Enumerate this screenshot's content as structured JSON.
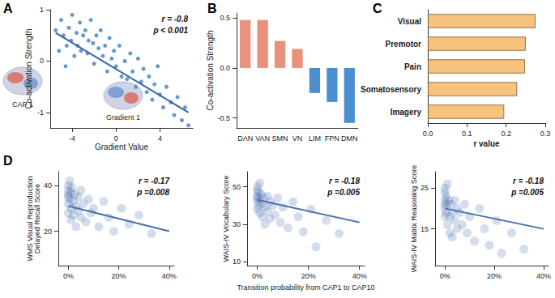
{
  "chart_data": [
    {
      "type": "scatter",
      "panel": "A",
      "xlabel": "Gradient Value",
      "ylabel": "Co-activation Strength",
      "xlim": [
        -6,
        7
      ],
      "xticks": [
        -4,
        0,
        4
      ],
      "ylim": [
        -1.3,
        1
      ],
      "yticks": [
        -1,
        0,
        1
      ],
      "grid": false,
      "annotations": [
        "r = -0.8",
        "p < 0.001"
      ],
      "image_labels": [
        "CAP 1",
        "Gradient 1"
      ],
      "series": [
        {
          "type": "scatter",
          "color": "#4a86c5",
          "marker": "circle",
          "values": [
            [
              -5.5,
              0.6
            ],
            [
              -5.2,
              0.2
            ],
            [
              -5,
              0.8
            ],
            [
              -4.8,
              0.5
            ],
            [
              -4.6,
              -0.1
            ],
            [
              -4.5,
              0.3
            ],
            [
              -4.3,
              0.65
            ],
            [
              -4.1,
              0.4
            ],
            [
              -4,
              0.9
            ],
            [
              -3.8,
              0.1
            ],
            [
              -3.6,
              0.55
            ],
            [
              -3.5,
              0.3
            ],
            [
              -3.3,
              0.75
            ],
            [
              -3.2,
              0.2
            ],
            [
              -3,
              0.5
            ],
            [
              -2.8,
              0.6
            ],
            [
              -2.6,
              0.15
            ],
            [
              -2.5,
              0.4
            ],
            [
              -2.3,
              0.8
            ],
            [
              -2.1,
              0.35
            ],
            [
              -2,
              -0.05
            ],
            [
              -1.8,
              0.5
            ],
            [
              -1.6,
              0.25
            ],
            [
              -1.4,
              0.6
            ],
            [
              -1.2,
              0.1
            ],
            [
              -1,
              0.3
            ],
            [
              -0.8,
              -0.2
            ],
            [
              -0.6,
              0.45
            ],
            [
              -0.4,
              0.05
            ],
            [
              -0.2,
              0.2
            ],
            [
              0,
              -0.1
            ],
            [
              0.3,
              0.3
            ],
            [
              0.5,
              -0.3
            ],
            [
              0.8,
              0
            ],
            [
              1,
              -0.35
            ],
            [
              1.3,
              0.15
            ],
            [
              1.5,
              -0.2
            ],
            [
              1.8,
              -0.5
            ],
            [
              2,
              0.05
            ],
            [
              2.3,
              -0.4
            ],
            [
              2.5,
              -0.15
            ],
            [
              2.8,
              -0.6
            ],
            [
              3,
              -0.3
            ],
            [
              3.3,
              -0.75
            ],
            [
              3.5,
              -0.45
            ],
            [
              3.8,
              -0.1
            ],
            [
              4,
              -0.65
            ],
            [
              4.3,
              -0.9
            ],
            [
              4.6,
              -0.5
            ],
            [
              5,
              -0.8
            ],
            [
              5.3,
              -1.05
            ],
            [
              5.6,
              -0.7
            ],
            [
              6,
              -1.15
            ],
            [
              6.3,
              -0.9
            ],
            [
              6.6,
              -1.25
            ]
          ]
        },
        {
          "type": "line",
          "color": "#3868a6",
          "line_style": "solid",
          "values": [
            [
              -5.5,
              0.55
            ],
            [
              6.6,
              -1
            ]
          ]
        }
      ]
    },
    {
      "type": "bar",
      "panel": "B",
      "ylabel": "Co-activation Strength",
      "categories": [
        "DAN",
        "VAN",
        "SMN",
        "VN",
        "LIM",
        "FPN",
        "DMN"
      ],
      "values": [
        0.48,
        0.48,
        0.27,
        0.19,
        -0.25,
        -0.34,
        -0.55
      ],
      "colors": [
        "#e8927c",
        "#e8927c",
        "#e8927c",
        "#e8927c",
        "#4b8fd1",
        "#4b8fd1",
        "#4b8fd1"
      ],
      "ylim": [
        -0.6,
        0.55
      ],
      "yticks": [
        -0.5,
        {
          "value": 0,
          "label": "0.0"
        },
        0.5
      ],
      "grid": false
    },
    {
      "type": "bar",
      "panel": "C",
      "orientation": "horizontal",
      "xlabel": "r value",
      "categories": [
        "Visual",
        "Premotor",
        "Pain",
        "Somatosensory",
        "Imagery"
      ],
      "values": [
        0.275,
        0.25,
        0.248,
        0.228,
        0.195
      ],
      "color": "#f7c27e",
      "xlim": [
        0,
        0.3
      ],
      "xticks": [
        {
          "value": 0,
          "label": "0.0"
        },
        0.1,
        0.2,
        0.3
      ],
      "grid": false
    },
    {
      "type": "scatter",
      "panel": "D",
      "ylabel": "WMS Visual Reproduction\nDelayed Recall Score",
      "xlim": [
        -4,
        42
      ],
      "xticks": [
        {
          "value": 0,
          "label": "0%"
        },
        {
          "value": 20,
          "label": "20%"
        },
        {
          "value": 40,
          "label": "40%"
        }
      ],
      "ylim": [
        5,
        46
      ],
      "yticks": [
        20,
        40
      ],
      "grid": false,
      "annotations": [
        "r = -0.17",
        "p =0.008"
      ],
      "series": [
        {
          "type": "scatter",
          "color": "#3b63a8",
          "marker": "circle",
          "values": [
            [
              0,
              38
            ],
            [
              0,
              35
            ],
            [
              0,
              40
            ],
            [
              0,
              32
            ],
            [
              0,
              28
            ],
            [
              0,
              36
            ],
            [
              0.5,
              34
            ],
            [
              0.5,
              42
            ],
            [
              1,
              37
            ],
            [
              1,
              30
            ],
            [
              1,
              25
            ],
            [
              1.5,
              39
            ],
            [
              2,
              33
            ],
            [
              2,
              27
            ],
            [
              2.5,
              36
            ],
            [
              3,
              31
            ],
            [
              3,
              22
            ],
            [
              4,
              35
            ],
            [
              4,
              29
            ],
            [
              5,
              38
            ],
            [
              5,
              26
            ],
            [
              6,
              32
            ],
            [
              7,
              24
            ],
            [
              8,
              34
            ],
            [
              9,
              28
            ],
            [
              10,
              30
            ],
            [
              12,
              22
            ],
            [
              14,
              33
            ],
            [
              16,
              26
            ],
            [
              18,
              20
            ],
            [
              21,
              30
            ],
            [
              24,
              23
            ],
            [
              28,
              27
            ],
            [
              33,
              19
            ]
          ]
        },
        {
          "type": "line",
          "color": "#4a6fb0",
          "line_style": "solid",
          "values": [
            [
              0,
              31
            ],
            [
              40,
              20
            ]
          ]
        }
      ]
    },
    {
      "type": "scatter",
      "xlabel": "Transition probability from CAP1 to CAP10",
      "ylabel": "WAIS-IV Vocabulary Score",
      "xlim": [
        -4,
        42
      ],
      "xticks": [
        {
          "value": 0,
          "label": "0%"
        },
        {
          "value": 20,
          "label": "20%"
        },
        {
          "value": 40,
          "label": "40%"
        }
      ],
      "ylim": [
        8,
        58
      ],
      "yticks": [
        10,
        30,
        50
      ],
      "grid": false,
      "annotations": [
        "r = -0.18",
        "p =0.005"
      ],
      "series": [
        {
          "type": "scatter",
          "color": "#3b63a8",
          "marker": "circle",
          "values": [
            [
              0,
              45
            ],
            [
              0,
              42
            ],
            [
              0,
              48
            ],
            [
              0,
              38
            ],
            [
              0,
              50
            ],
            [
              0,
              44
            ],
            [
              0.5,
              40
            ],
            [
              0.5,
              47
            ],
            [
              1,
              43
            ],
            [
              1,
              36
            ],
            [
              1,
              52
            ],
            [
              1.5,
              46
            ],
            [
              2,
              41
            ],
            [
              2,
              34
            ],
            [
              2.5,
              44
            ],
            [
              3,
              39
            ],
            [
              3,
              30
            ],
            [
              4,
              45
            ],
            [
              4,
              37
            ],
            [
              5,
              42
            ],
            [
              5,
              33
            ],
            [
              6,
              40
            ],
            [
              7,
              35
            ],
            [
              8,
              44
            ],
            [
              9,
              31
            ],
            [
              10,
              39
            ],
            [
              12,
              28
            ],
            [
              14,
              42
            ],
            [
              16,
              34
            ],
            [
              18,
              26
            ],
            [
              21,
              38
            ],
            [
              23,
              18
            ],
            [
              27,
              32
            ],
            [
              32,
              25
            ]
          ]
        },
        {
          "type": "line",
          "color": "#4a6fb0",
          "line_style": "solid",
          "values": [
            [
              0,
              43
            ],
            [
              40,
              31
            ]
          ]
        }
      ]
    },
    {
      "type": "scatter",
      "ylabel": "WAIS-IV Matrix Reasoning Score",
      "xlim": [
        -4,
        42
      ],
      "xticks": [
        {
          "value": 0,
          "label": "0%"
        },
        {
          "value": 20,
          "label": "20%"
        },
        {
          "value": 40,
          "label": "40%"
        }
      ],
      "ylim": [
        6,
        29
      ],
      "yticks": [
        15,
        25
      ],
      "grid": false,
      "annotations": [
        "r = -0.18",
        "p =0.005"
      ],
      "series": [
        {
          "type": "scatter",
          "color": "#3b63a8",
          "marker": "circle",
          "values": [
            [
              0,
              22
            ],
            [
              0,
              20
            ],
            [
              0,
              24
            ],
            [
              0,
              18
            ],
            [
              0,
              25
            ],
            [
              0,
              21
            ],
            [
              0.5,
              19
            ],
            [
              0.5,
              23
            ],
            [
              1,
              21
            ],
            [
              1,
              16
            ],
            [
              1,
              26
            ],
            [
              1.5,
              22
            ],
            [
              2,
              18
            ],
            [
              2,
              14
            ],
            [
              2.5,
              21
            ],
            [
              3,
              19
            ],
            [
              3,
              13
            ],
            [
              4,
              22
            ],
            [
              4,
              17
            ],
            [
              5,
              20
            ],
            [
              5,
              15
            ],
            [
              6,
              19
            ],
            [
              7,
              16
            ],
            [
              8,
              21
            ],
            [
              9,
              14
            ],
            [
              10,
              18
            ],
            [
              12,
              12
            ],
            [
              14,
              20
            ],
            [
              16,
              15
            ],
            [
              18,
              11
            ],
            [
              21,
              17
            ],
            [
              23,
              9
            ],
            [
              27,
              14
            ],
            [
              32,
              10
            ]
          ]
        },
        {
          "type": "line",
          "color": "#4a6fb0",
          "line_style": "solid",
          "values": [
            [
              0,
              20
            ],
            [
              40,
              15
            ]
          ]
        }
      ]
    }
  ]
}
